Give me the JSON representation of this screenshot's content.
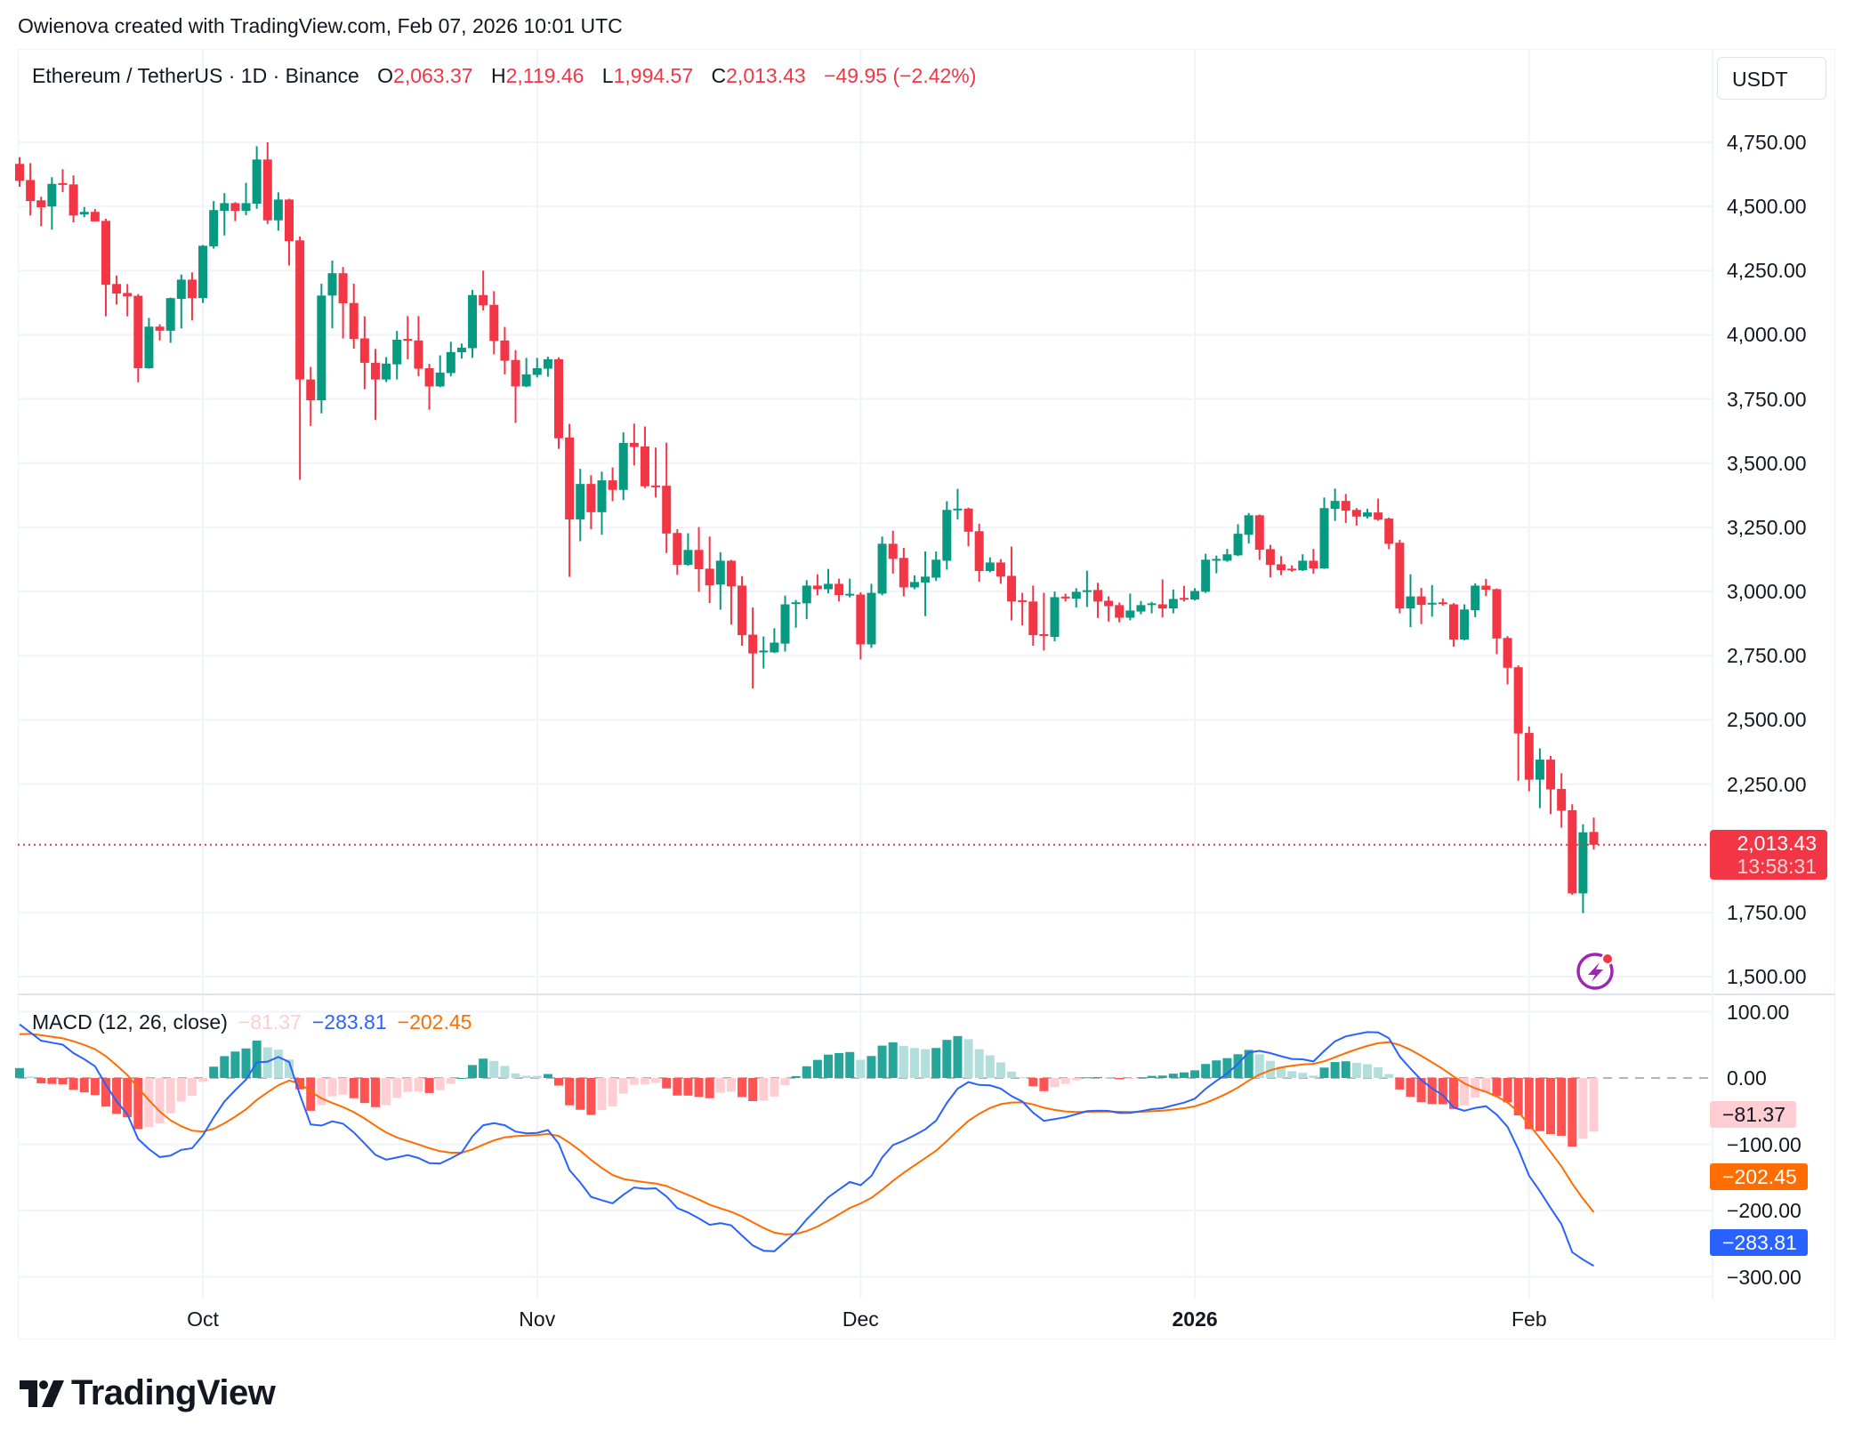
{
  "header": {
    "title": "Owienova created with TradingView.com, Feb 07, 2026 10:01 UTC"
  },
  "legend": {
    "symbol": "Ethereum / TetherUS · 1D · Binance",
    "o_label": "O",
    "o": "2,063.37",
    "h_label": "H",
    "h": "2,119.46",
    "l_label": "L",
    "l": "1,994.57",
    "c_label": "C",
    "c": "2,013.43",
    "change": "−49.95 (−2.42%)"
  },
  "currency": "USDT",
  "last_price": {
    "value": 2013.43,
    "label": "2,013.43",
    "countdown": "13:58:31"
  },
  "macd_legend": {
    "label": "MACD (12, 26, close)",
    "hist": "−81.37",
    "macd": "−283.81",
    "signal": "−202.45"
  },
  "macd_axis_labels": {
    "hist": "−81.37",
    "signal": "−202.45",
    "macd": "−283.81"
  },
  "colors": {
    "up": "#089981",
    "down": "#f23645",
    "macd": "#2962ff",
    "signal": "#ff6d00",
    "hist_up_strong": "#26a69a",
    "hist_up_weak": "#b2dfdb",
    "hist_down_strong": "#ff5252",
    "hist_down_weak": "#ffcdd2",
    "brand_icon": "#9c27b0"
  },
  "icons": {
    "alert": "lightning-alert-icon",
    "logo": "tradingview-logo"
  },
  "logo_text": "TradingView",
  "chart_data": [
    {
      "type": "candlestick",
      "title": "Ethereum / TetherUS · 1D · Binance",
      "ylabel": "USDT",
      "ylim": [
        1400,
        4900
      ],
      "grid": true,
      "y_ticks": [
        {
          "v": 4750,
          "t": "4,750.00"
        },
        {
          "v": 4500,
          "t": "4,500.00"
        },
        {
          "v": 4250,
          "t": "4,250.00"
        },
        {
          "v": 4000,
          "t": "4,000.00"
        },
        {
          "v": 3750,
          "t": "3,750.00"
        },
        {
          "v": 3500,
          "t": "3,500.00"
        },
        {
          "v": 3250,
          "t": "3,250.00"
        },
        {
          "v": 3000,
          "t": "3,000.00"
        },
        {
          "v": 2750,
          "t": "2,750.00"
        },
        {
          "v": 2500,
          "t": "2,500.00"
        },
        {
          "v": 2250,
          "t": "2,250.00"
        },
        {
          "v": 1750,
          "t": "1,750.00"
        },
        {
          "v": 1500,
          "t": "1,500.00"
        }
      ],
      "x_ticks": [
        {
          "d": "2025-10-01",
          "t": "Oct",
          "bold": false
        },
        {
          "d": "2025-11-01",
          "t": "Nov",
          "bold": false
        },
        {
          "d": "2025-12-01",
          "t": "Dec",
          "bold": false
        },
        {
          "d": "2026-01-01",
          "t": "2026",
          "bold": true
        },
        {
          "d": "2026-02-01",
          "t": "Feb",
          "bold": false
        }
      ],
      "columns": [
        "date",
        "open",
        "high",
        "low",
        "close"
      ],
      "candles": [
        [
          "2025-09-14",
          4666,
          4692,
          4577,
          4600
        ],
        [
          "2025-09-15",
          4603,
          4669,
          4465,
          4521
        ],
        [
          "2025-09-16",
          4524,
          4538,
          4423,
          4497
        ],
        [
          "2025-09-17",
          4500,
          4614,
          4410,
          4588
        ],
        [
          "2025-09-18",
          4591,
          4645,
          4556,
          4588
        ],
        [
          "2025-09-19",
          4586,
          4621,
          4438,
          4465
        ],
        [
          "2025-09-20",
          4469,
          4498,
          4458,
          4479
        ],
        [
          "2025-09-21",
          4479,
          4490,
          4442,
          4442
        ],
        [
          "2025-09-22",
          4444,
          4452,
          4072,
          4195
        ],
        [
          "2025-09-23",
          4198,
          4231,
          4118,
          4161
        ],
        [
          "2025-09-24",
          4163,
          4198,
          4072,
          4150
        ],
        [
          "2025-09-25",
          4152,
          4159,
          3815,
          3870
        ],
        [
          "2025-09-26",
          3870,
          4066,
          3868,
          4032
        ],
        [
          "2025-09-27",
          4032,
          4041,
          3978,
          4016
        ],
        [
          "2025-09-28",
          4016,
          4145,
          3969,
          4143
        ],
        [
          "2025-09-29",
          4140,
          4235,
          4025,
          4215
        ],
        [
          "2025-09-30",
          4215,
          4243,
          4056,
          4143
        ],
        [
          "2025-10-01",
          4143,
          4350,
          4124,
          4347
        ],
        [
          "2025-10-02",
          4345,
          4521,
          4336,
          4486
        ],
        [
          "2025-10-03",
          4483,
          4552,
          4387,
          4513
        ],
        [
          "2025-10-04",
          4513,
          4517,
          4443,
          4483
        ],
        [
          "2025-10-05",
          4483,
          4592,
          4466,
          4513
        ],
        [
          "2025-10-06",
          4511,
          4735,
          4491,
          4683
        ],
        [
          "2025-10-07",
          4683,
          4750,
          4432,
          4446
        ],
        [
          "2025-10-08",
          4446,
          4555,
          4406,
          4527
        ],
        [
          "2025-10-09",
          4527,
          4530,
          4270,
          4365
        ],
        [
          "2025-10-10",
          4368,
          4383,
          3435,
          3826
        ],
        [
          "2025-10-11",
          3826,
          3875,
          3645,
          3745
        ],
        [
          "2025-10-12",
          3745,
          4199,
          3694,
          4153
        ],
        [
          "2025-10-13",
          4153,
          4289,
          4026,
          4240
        ],
        [
          "2025-10-14",
          4240,
          4264,
          3986,
          4123
        ],
        [
          "2025-10-15",
          4124,
          4199,
          3946,
          3984
        ],
        [
          "2025-10-16",
          3986,
          4072,
          3788,
          3891
        ],
        [
          "2025-10-17",
          3891,
          3945,
          3668,
          3826
        ],
        [
          "2025-10-18",
          3826,
          3913,
          3816,
          3888
        ],
        [
          "2025-10-19",
          3885,
          4015,
          3826,
          3981
        ],
        [
          "2025-10-20",
          3984,
          4073,
          3905,
          3981
        ],
        [
          "2025-10-21",
          3978,
          4073,
          3839,
          3868
        ],
        [
          "2025-10-22",
          3870,
          3887,
          3708,
          3799
        ],
        [
          "2025-10-23",
          3799,
          3920,
          3796,
          3853
        ],
        [
          "2025-10-24",
          3851,
          3973,
          3839,
          3933
        ],
        [
          "2025-10-25",
          3932,
          3966,
          3908,
          3950
        ],
        [
          "2025-10-26",
          3948,
          4175,
          3910,
          4155
        ],
        [
          "2025-10-27",
          4155,
          4250,
          4095,
          4115
        ],
        [
          "2025-10-28",
          4117,
          4170,
          3924,
          3976
        ],
        [
          "2025-10-29",
          3978,
          4031,
          3846,
          3899
        ],
        [
          "2025-10-30",
          3902,
          3940,
          3657,
          3799
        ],
        [
          "2025-10-31",
          3799,
          3910,
          3796,
          3846
        ],
        [
          "2025-11-01",
          3844,
          3910,
          3834,
          3870
        ],
        [
          "2025-11-02",
          3868,
          3915,
          3837,
          3905
        ],
        [
          "2025-11-03",
          3905,
          3912,
          3556,
          3597
        ],
        [
          "2025-11-04",
          3600,
          3653,
          3057,
          3281
        ],
        [
          "2025-11-05",
          3281,
          3478,
          3196,
          3419
        ],
        [
          "2025-11-06",
          3419,
          3453,
          3243,
          3309
        ],
        [
          "2025-11-07",
          3309,
          3467,
          3221,
          3433
        ],
        [
          "2025-11-08",
          3433,
          3483,
          3352,
          3396
        ],
        [
          "2025-11-09",
          3396,
          3620,
          3356,
          3579
        ],
        [
          "2025-11-10",
          3579,
          3654,
          3491,
          3563
        ],
        [
          "2025-11-11",
          3565,
          3643,
          3403,
          3410
        ],
        [
          "2025-11-12",
          3413,
          3561,
          3366,
          3411
        ],
        [
          "2025-11-13",
          3412,
          3580,
          3150,
          3226
        ],
        [
          "2025-11-14",
          3228,
          3243,
          3065,
          3104
        ],
        [
          "2025-11-15",
          3104,
          3227,
          3100,
          3162
        ],
        [
          "2025-11-16",
          3162,
          3251,
          2999,
          3087
        ],
        [
          "2025-11-17",
          3089,
          3214,
          2955,
          3024
        ],
        [
          "2025-11-18",
          3027,
          3153,
          2929,
          3120
        ],
        [
          "2025-11-19",
          3120,
          3123,
          2871,
          3020
        ],
        [
          "2025-11-20",
          3023,
          3060,
          2789,
          2830
        ],
        [
          "2025-11-21",
          2832,
          2938,
          2622,
          2759
        ],
        [
          "2025-11-22",
          2765,
          2825,
          2700,
          2770
        ],
        [
          "2025-11-23",
          2763,
          2857,
          2760,
          2801
        ],
        [
          "2025-11-24",
          2797,
          2984,
          2766,
          2950
        ],
        [
          "2025-11-25",
          2954,
          2967,
          2859,
          2958
        ],
        [
          "2025-11-26",
          2954,
          3044,
          2892,
          3023
        ],
        [
          "2025-11-27",
          3023,
          3067,
          2985,
          3009
        ],
        [
          "2025-11-28",
          3009,
          3088,
          2993,
          3030
        ],
        [
          "2025-11-29",
          3030,
          3050,
          2961,
          2986
        ],
        [
          "2025-11-30",
          2988,
          3050,
          2977,
          2991
        ],
        [
          "2025-12-01",
          2988,
          2997,
          2735,
          2794
        ],
        [
          "2025-12-02",
          2794,
          3030,
          2780,
          2995
        ],
        [
          "2025-12-03",
          2992,
          3214,
          2985,
          3186
        ],
        [
          "2025-12-04",
          3186,
          3237,
          3070,
          3127
        ],
        [
          "2025-12-05",
          3131,
          3170,
          2981,
          3016
        ],
        [
          "2025-12-06",
          3016,
          3063,
          3009,
          3037
        ],
        [
          "2025-12-07",
          3035,
          3156,
          2904,
          3058
        ],
        [
          "2025-12-08",
          3054,
          3156,
          3041,
          3124
        ],
        [
          "2025-12-09",
          3120,
          3352,
          3085,
          3318
        ],
        [
          "2025-12-10",
          3320,
          3400,
          3281,
          3323
        ],
        [
          "2025-12-11",
          3323,
          3327,
          3176,
          3233
        ],
        [
          "2025-12-12",
          3235,
          3264,
          3038,
          3080
        ],
        [
          "2025-12-13",
          3080,
          3133,
          3075,
          3113
        ],
        [
          "2025-12-14",
          3113,
          3126,
          3030,
          3058
        ],
        [
          "2025-12-15",
          3061,
          3175,
          2887,
          2961
        ],
        [
          "2025-12-16",
          2966,
          2995,
          2868,
          2964
        ],
        [
          "2025-12-17",
          2961,
          3023,
          2789,
          2830
        ],
        [
          "2025-12-18",
          2834,
          2995,
          2770,
          2832
        ],
        [
          "2025-12-19",
          2823,
          3000,
          2806,
          2978
        ],
        [
          "2025-12-20",
          2980,
          2992,
          2961,
          2978
        ],
        [
          "2025-12-21",
          2972,
          3013,
          2938,
          2999
        ],
        [
          "2025-12-22",
          2999,
          3081,
          2940,
          3005
        ],
        [
          "2025-12-23",
          3006,
          3034,
          2897,
          2961
        ],
        [
          "2025-12-24",
          2964,
          2981,
          2883,
          2943
        ],
        [
          "2025-12-25",
          2947,
          2957,
          2880,
          2898
        ],
        [
          "2025-12-26",
          2898,
          2992,
          2888,
          2926
        ],
        [
          "2025-12-27",
          2922,
          2963,
          2911,
          2947
        ],
        [
          "2025-12-28",
          2949,
          2960,
          2915,
          2954
        ],
        [
          "2025-12-29",
          2950,
          3047,
          2899,
          2934
        ],
        [
          "2025-12-30",
          2934,
          3008,
          2915,
          2971
        ],
        [
          "2025-12-31",
          2975,
          3022,
          2961,
          2971
        ],
        [
          "2026-01-01",
          2969,
          3013,
          2965,
          3002
        ],
        [
          "2026-01-02",
          2999,
          3147,
          2994,
          3124
        ],
        [
          "2026-01-03",
          3124,
          3140,
          3071,
          3127
        ],
        [
          "2026-01-04",
          3120,
          3166,
          3116,
          3145
        ],
        [
          "2026-01-05",
          3141,
          3262,
          3138,
          3225
        ],
        [
          "2026-01-06",
          3221,
          3306,
          3187,
          3297
        ],
        [
          "2026-01-07",
          3297,
          3300,
          3123,
          3163
        ],
        [
          "2026-01-08",
          3165,
          3182,
          3055,
          3104
        ],
        [
          "2026-01-09",
          3106,
          3138,
          3064,
          3083
        ],
        [
          "2026-01-10",
          3089,
          3102,
          3077,
          3083
        ],
        [
          "2026-01-11",
          3083,
          3145,
          3080,
          3120
        ],
        [
          "2026-01-12",
          3120,
          3166,
          3069,
          3090
        ],
        [
          "2026-01-13",
          3090,
          3366,
          3088,
          3325
        ],
        [
          "2026-01-14",
          3322,
          3401,
          3275,
          3353
        ],
        [
          "2026-01-15",
          3353,
          3380,
          3267,
          3315
        ],
        [
          "2026-01-16",
          3318,
          3325,
          3257,
          3292
        ],
        [
          "2026-01-17",
          3292,
          3322,
          3285,
          3308
        ],
        [
          "2026-01-18",
          3308,
          3362,
          3276,
          3280
        ],
        [
          "2026-01-19",
          3284,
          3288,
          3165,
          3186
        ],
        [
          "2026-01-20",
          3190,
          3201,
          2915,
          2934
        ],
        [
          "2026-01-21",
          2934,
          3067,
          2861,
          2981
        ],
        [
          "2026-01-22",
          2981,
          3014,
          2873,
          2948
        ],
        [
          "2026-01-23",
          2954,
          3025,
          2902,
          2956
        ],
        [
          "2026-01-24",
          2958,
          2973,
          2945,
          2951
        ],
        [
          "2026-01-25",
          2950,
          2955,
          2785,
          2813
        ],
        [
          "2026-01-26",
          2813,
          2950,
          2810,
          2930
        ],
        [
          "2026-01-27",
          2927,
          3032,
          2900,
          3023
        ],
        [
          "2026-01-28",
          3023,
          3049,
          2982,
          3007
        ],
        [
          "2026-01-29",
          3009,
          3012,
          2756,
          2817
        ],
        [
          "2026-01-30",
          2819,
          2826,
          2638,
          2703
        ],
        [
          "2026-01-31",
          2705,
          2712,
          2263,
          2447
        ],
        [
          "2026-02-01",
          2449,
          2474,
          2222,
          2267
        ],
        [
          "2026-02-02",
          2267,
          2389,
          2156,
          2345
        ],
        [
          "2026-02-03",
          2345,
          2359,
          2133,
          2229
        ],
        [
          "2026-02-04",
          2231,
          2292,
          2080,
          2146
        ],
        [
          "2026-02-05",
          2148,
          2171,
          1818,
          1824
        ],
        [
          "2026-02-06",
          1824,
          2093,
          1747,
          2062
        ],
        [
          "2026-02-07",
          2063.37,
          2119.46,
          1994.57,
          2013.43
        ]
      ]
    },
    {
      "type": "macd",
      "params": {
        "fast": 12,
        "slow": 26,
        "source": "close"
      },
      "first_visible": {
        "macd": 81,
        "signal": 66
      },
      "last": {
        "histogram": -81.37,
        "macd": -283.81,
        "signal": -202.45
      },
      "ylim": [
        -320,
        120
      ],
      "y_ticks": [
        {
          "v": 100,
          "t": "100.00"
        },
        {
          "v": 0,
          "t": "0.00"
        },
        {
          "v": -100,
          "t": "−100.00"
        },
        {
          "v": -200,
          "t": "−200.00"
        },
        {
          "v": -300,
          "t": "−300.00"
        }
      ]
    }
  ]
}
